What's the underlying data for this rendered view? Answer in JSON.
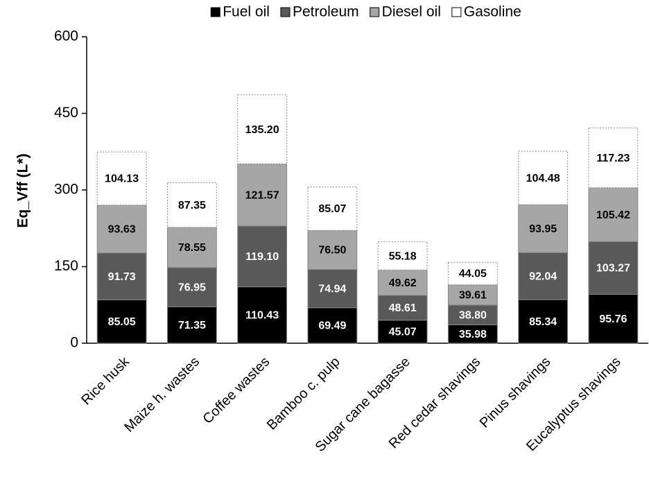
{
  "chart_data": {
    "type": "stacked_bar",
    "y_label": "Eq_Vff (L*)",
    "categories": [
      "Rice husk",
      "Maize h. wastes",
      "Coffee wastes",
      "Bamboo c. pulp",
      "Sugar cane bagasse",
      "Red cedar shavings",
      "Pinus shavings",
      "Eucalyptus shavings"
    ],
    "series": [
      {
        "name": "Fuel oil",
        "color": "#000000",
        "values": [
          85.05,
          71.35,
          110.43,
          69.49,
          45.07,
          35.98,
          85.34,
          95.76
        ],
        "value_labels": [
          "85.05",
          "71.35",
          "110.43",
          "69.49",
          "45.07",
          "35.98",
          "85.34",
          "95.76"
        ]
      },
      {
        "name": "Petroleum",
        "color": "#595959",
        "values": [
          91.73,
          76.95,
          119.1,
          74.94,
          48.61,
          38.8,
          92.04,
          103.27
        ],
        "value_labels": [
          "91.73",
          "76.95",
          "119.10",
          "74.94",
          "48.61",
          "38.80",
          "92.04",
          "103.27"
        ]
      },
      {
        "name": "Diesel oil",
        "color": "#a6a6a6",
        "values": [
          93.63,
          78.55,
          121.57,
          76.5,
          49.62,
          39.61,
          93.95,
          105.42
        ],
        "value_labels": [
          "93.63",
          "78.55",
          "121.57",
          "76.50",
          "49.62",
          "39.61",
          "93.95",
          "105.42"
        ]
      },
      {
        "name": "Gasoline",
        "color": "#ffffff",
        "values": [
          104.13,
          87.35,
          135.2,
          85.07,
          55.18,
          44.05,
          104.48,
          117.23
        ],
        "value_labels": [
          "104.13",
          "87.35",
          "135.20",
          "85.07",
          "55.18",
          "44.05",
          "104.48",
          "117.23"
        ]
      }
    ],
    "ylim": [
      0,
      600
    ],
    "yticks": [
      0,
      150,
      300,
      450,
      600
    ],
    "legend": "top"
  }
}
